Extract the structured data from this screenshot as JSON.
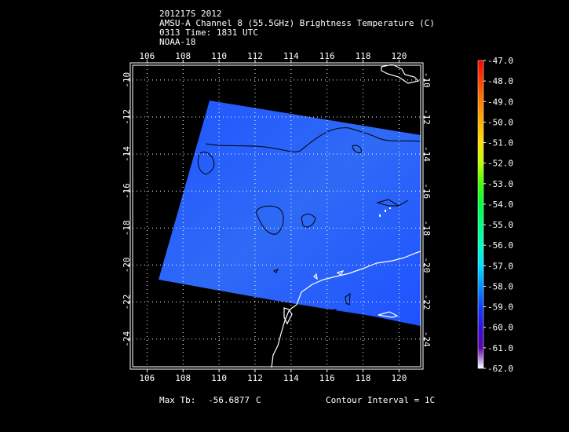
{
  "header": {
    "line1": "201217S 2012",
    "line2": "AMSU-A Channel 8 (55.5GHz) Brightness Temperature (C)",
    "line3": "0313 Time: 1831 UTC",
    "line4": "NOAA-18"
  },
  "map": {
    "lon_ticks": [
      "106",
      "108",
      "110",
      "112",
      "114",
      "116",
      "118",
      "120"
    ],
    "lat_ticks": [
      "-10",
      "-12",
      "-14",
      "-16",
      "-18",
      "-20",
      "-22",
      "-24"
    ],
    "lon_range": [
      105.2,
      121.2
    ],
    "lat_range": [
      -9.2,
      -25.5
    ],
    "swath_color": "#2a5cff",
    "coastline_color": "#ffffff",
    "contour_color": "#000000"
  },
  "colorbar": {
    "labels": [
      "-47.0",
      "-48.0",
      "-49.0",
      "-50.0",
      "-51.0",
      "-52.0",
      "-53.0",
      "-54.0",
      "-55.0",
      "-56.0",
      "-57.0",
      "-58.0",
      "-59.0",
      "-60.0",
      "-61.0",
      "-62.0"
    ],
    "colors": [
      "#ff0000",
      "#ff4000",
      "#ff8000",
      "#ffb000",
      "#ffe000",
      "#c0ff00",
      "#40ff00",
      "#00ff40",
      "#00ff80",
      "#00ffc0",
      "#00e0ff",
      "#0090ff",
      "#1040ff",
      "#3010e0",
      "#6000b0",
      "#ffffff"
    ]
  },
  "footer": {
    "max_tb_label": "Max Tb:",
    "max_tb_value": "-56.6877",
    "max_tb_unit": "C",
    "contour_interval": "Contour Interval = 1C"
  }
}
